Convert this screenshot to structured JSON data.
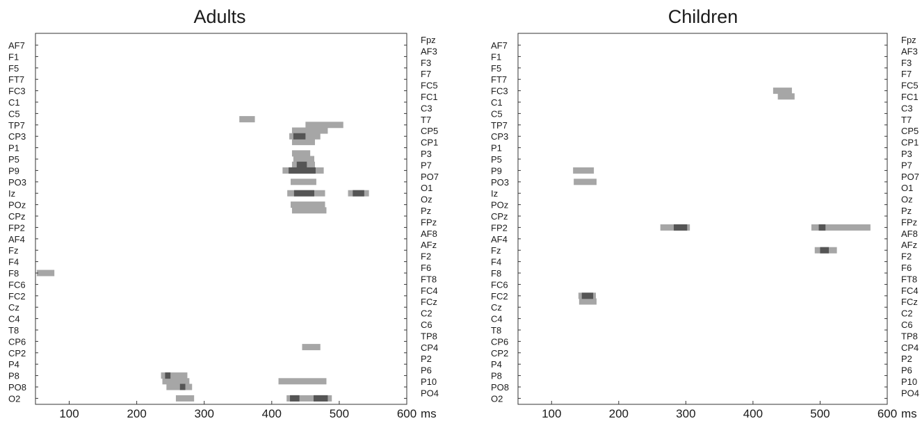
{
  "chart_data": [
    {
      "type": "heatmap",
      "title": "Adults",
      "x_unit": "ms",
      "xlim": [
        50,
        600
      ],
      "x_ticks": [
        100,
        200,
        300,
        400,
        500,
        600
      ],
      "left_labels": [
        "AF7",
        "F1",
        "F5",
        "FT7",
        "FC3",
        "C1",
        "C5",
        "TP7",
        "CP3",
        "P1",
        "P5",
        "P9",
        "PO3",
        "Iz",
        "POz",
        "CPz",
        "FP2",
        "AF4",
        "Fz",
        "F4",
        "F8",
        "FC6",
        "FC2",
        "Cz",
        "C4",
        "T8",
        "CP6",
        "CP2",
        "P4",
        "P8",
        "PO8",
        "O2"
      ],
      "right_labels": [
        "Fpz",
        "AF3",
        "F3",
        "F7",
        "FC5",
        "FC1",
        "C3",
        "T7",
        "CP5",
        "CP1",
        "P3",
        "P7",
        "PO7",
        "O1",
        "Oz",
        "Pz",
        "FPz",
        "AF8",
        "AFz",
        "F2",
        "F6",
        "FT8",
        "FC4",
        "FCz",
        "C2",
        "C6",
        "TP8",
        "CP4",
        "P2",
        "P6",
        "P10",
        "PO4"
      ],
      "light_color": "#a6a6a6",
      "dark_color": "#555555",
      "segments": [
        {
          "y": 6.5,
          "x0": 352,
          "x1": 375,
          "level": "light"
        },
        {
          "y": 7.0,
          "x0": 450,
          "x1": 506,
          "level": "light"
        },
        {
          "y": 7.5,
          "x0": 430,
          "x1": 483,
          "level": "light"
        },
        {
          "y": 8.0,
          "x0": 426,
          "x1": 472,
          "level": "light"
        },
        {
          "y": 8.0,
          "x0": 432,
          "x1": 450,
          "level": "dark"
        },
        {
          "y": 8.5,
          "x0": 430,
          "x1": 464,
          "level": "light"
        },
        {
          "y": 9.5,
          "x0": 430,
          "x1": 457,
          "level": "light"
        },
        {
          "y": 10.0,
          "x0": 432,
          "x1": 463,
          "level": "light"
        },
        {
          "y": 10.5,
          "x0": 430,
          "x1": 464,
          "level": "light"
        },
        {
          "y": 10.5,
          "x0": 437,
          "x1": 452,
          "level": "dark"
        },
        {
          "y": 11.0,
          "x0": 416,
          "x1": 477,
          "level": "light"
        },
        {
          "y": 11.0,
          "x0": 425,
          "x1": 465,
          "level": "dark"
        },
        {
          "y": 12.0,
          "x0": 428,
          "x1": 466,
          "level": "light"
        },
        {
          "y": 13.0,
          "x0": 423,
          "x1": 479,
          "level": "light"
        },
        {
          "y": 13.0,
          "x0": 433,
          "x1": 463,
          "level": "dark"
        },
        {
          "y": 13.0,
          "x0": 513,
          "x1": 544,
          "level": "light"
        },
        {
          "y": 13.0,
          "x0": 520,
          "x1": 537,
          "level": "dark"
        },
        {
          "y": 14.0,
          "x0": 428,
          "x1": 479,
          "level": "light"
        },
        {
          "y": 14.5,
          "x0": 430,
          "x1": 481,
          "level": "light"
        },
        {
          "y": 20.0,
          "x0": 52,
          "x1": 78,
          "level": "light"
        },
        {
          "y": 26.5,
          "x0": 445,
          "x1": 472,
          "level": "light"
        },
        {
          "y": 29.0,
          "x0": 236,
          "x1": 275,
          "level": "light"
        },
        {
          "y": 29.0,
          "x0": 242,
          "x1": 250,
          "level": "dark"
        },
        {
          "y": 29.5,
          "x0": 238,
          "x1": 278,
          "level": "light"
        },
        {
          "y": 29.5,
          "x0": 410,
          "x1": 481,
          "level": "light"
        },
        {
          "y": 30.0,
          "x0": 244,
          "x1": 282,
          "level": "light"
        },
        {
          "y": 30.0,
          "x0": 264,
          "x1": 272,
          "level": "dark"
        },
        {
          "y": 31.0,
          "x0": 258,
          "x1": 285,
          "level": "light"
        },
        {
          "y": 31.0,
          "x0": 422,
          "x1": 489,
          "level": "light"
        },
        {
          "y": 31.0,
          "x0": 427,
          "x1": 441,
          "level": "dark"
        },
        {
          "y": 31.0,
          "x0": 462,
          "x1": 483,
          "level": "dark"
        }
      ]
    },
    {
      "type": "heatmap",
      "title": "Children",
      "x_unit": "ms",
      "xlim": [
        50,
        600
      ],
      "x_ticks": [
        100,
        200,
        300,
        400,
        500,
        600
      ],
      "left_labels": [
        "AF7",
        "F1",
        "F5",
        "FT7",
        "FC3",
        "C1",
        "C5",
        "TP7",
        "CP3",
        "P1",
        "P5",
        "P9",
        "PO3",
        "Iz",
        "POz",
        "CPz",
        "FP2",
        "AF4",
        "Fz",
        "F4",
        "F8",
        "FC6",
        "FC2",
        "Cz",
        "C4",
        "T8",
        "CP6",
        "CP2",
        "P4",
        "P8",
        "PO8",
        "O2"
      ],
      "right_labels": [
        "Fpz",
        "AF3",
        "F3",
        "F7",
        "FC5",
        "FC1",
        "C3",
        "T7",
        "CP5",
        "CP1",
        "P3",
        "P7",
        "PO7",
        "O1",
        "Oz",
        "Pz",
        "FPz",
        "AF8",
        "AFz",
        "F2",
        "F6",
        "FT8",
        "FC4",
        "FCz",
        "C2",
        "C6",
        "TP8",
        "CP4",
        "P2",
        "P6",
        "P10",
        "PO4"
      ],
      "light_color": "#a6a6a6",
      "dark_color": "#555555",
      "segments": [
        {
          "y": 4.0,
          "x0": 430,
          "x1": 458,
          "level": "light"
        },
        {
          "y": 4.5,
          "x0": 437,
          "x1": 462,
          "level": "light"
        },
        {
          "y": 11.0,
          "x0": 132,
          "x1": 163,
          "level": "light"
        },
        {
          "y": 12.0,
          "x0": 133,
          "x1": 167,
          "level": "light"
        },
        {
          "y": 16.0,
          "x0": 262,
          "x1": 306,
          "level": "light"
        },
        {
          "y": 16.0,
          "x0": 282,
          "x1": 302,
          "level": "dark"
        },
        {
          "y": 16.0,
          "x0": 487,
          "x1": 575,
          "level": "light"
        },
        {
          "y": 16.0,
          "x0": 498,
          "x1": 508,
          "level": "dark"
        },
        {
          "y": 18.0,
          "x0": 492,
          "x1": 525,
          "level": "light"
        },
        {
          "y": 18.0,
          "x0": 500,
          "x1": 513,
          "level": "dark"
        },
        {
          "y": 22.0,
          "x0": 140,
          "x1": 166,
          "level": "light"
        },
        {
          "y": 22.0,
          "x0": 145,
          "x1": 162,
          "level": "dark"
        },
        {
          "y": 22.5,
          "x0": 141,
          "x1": 167,
          "level": "light"
        }
      ]
    }
  ]
}
